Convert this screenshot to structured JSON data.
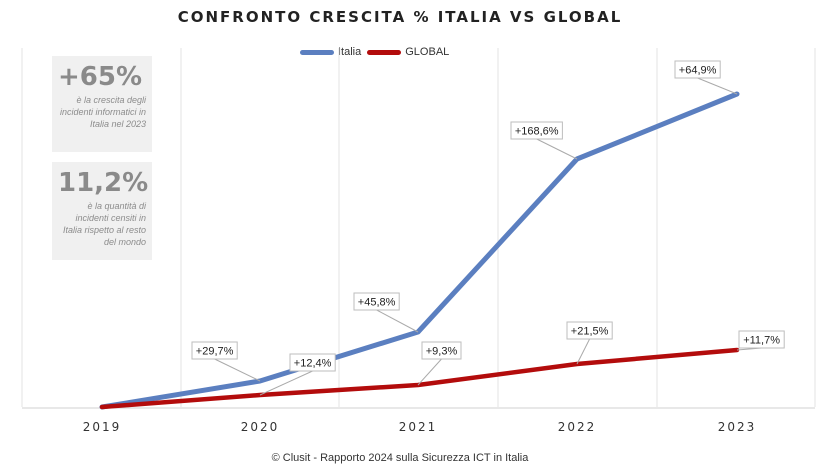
{
  "chart_data": {
    "type": "line",
    "title": "CONFRONTO CRESCITA % ITALIA VS GLOBAL",
    "categories": [
      "2019",
      "2020",
      "2021",
      "2022",
      "2023"
    ],
    "series": [
      {
        "name": "Italia",
        "color": "#5b7fc0",
        "values": [
          0,
          29.7,
          45.8,
          168.6,
          64.9
        ],
        "labels": [
          "",
          "+29,7%",
          "+45,8%",
          "+168,6%",
          "+64,9%"
        ]
      },
      {
        "name": "GLOBAL",
        "color": "#b30c0c",
        "values": [
          0,
          12.4,
          9.3,
          21.5,
          11.7
        ],
        "labels": [
          "",
          "+12,4%",
          "+9,3%",
          "+21,5%",
          "+11,7%"
        ]
      }
    ],
    "legend": "top-center",
    "grid": "vertical"
  },
  "infobox1": {
    "value": "+65%",
    "caption": "è la crescita degli incidenti informatici in Italia nel 2023"
  },
  "infobox2": {
    "value": "11,2%",
    "caption": "è la quantità di incidenti censiti in Italia rispetto al resto del mondo"
  },
  "footer": "© Clusit - Rapporto 2024 sulla Sicurezza ICT in Italia"
}
